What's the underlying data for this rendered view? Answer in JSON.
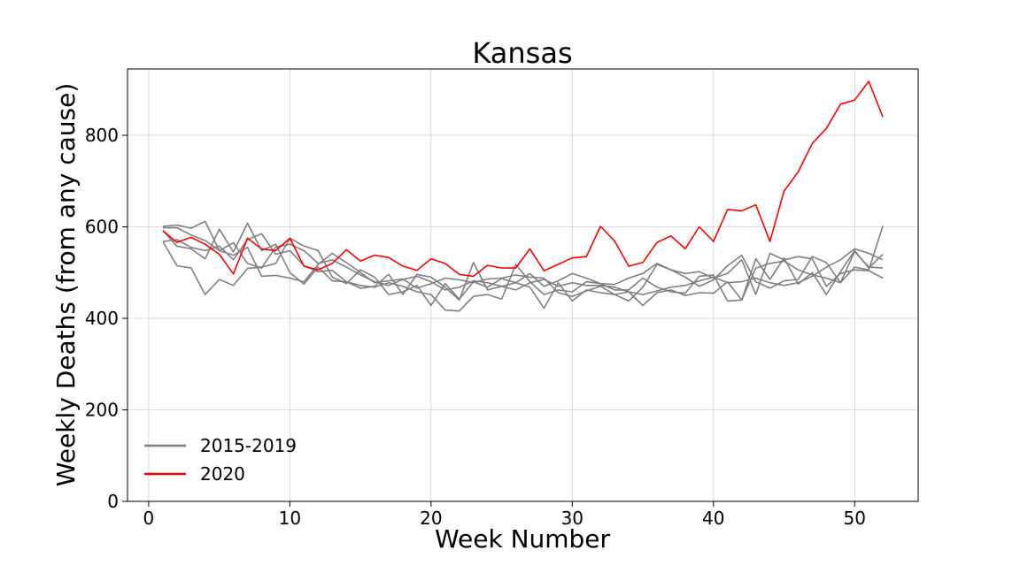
{
  "chart_data": {
    "type": "line",
    "title": "Kansas",
    "xlabel": "Week Number",
    "ylabel": "Weekly Deaths (from any cause)",
    "xlim": [
      -1.5,
      54.5
    ],
    "ylim": [
      0,
      945
    ],
    "xticks": [
      0,
      10,
      20,
      30,
      40,
      50
    ],
    "yticks": [
      0,
      200,
      400,
      600,
      800
    ],
    "grid": true,
    "legend_position": "lower-left",
    "legend": [
      {
        "label": "2015-2019",
        "color": "#808080"
      },
      {
        "label": "2020",
        "color": "#ff0000"
      }
    ],
    "x": [
      1,
      2,
      3,
      4,
      5,
      6,
      7,
      8,
      9,
      10,
      11,
      12,
      13,
      14,
      15,
      16,
      17,
      18,
      19,
      20,
      21,
      22,
      23,
      24,
      25,
      26,
      27,
      28,
      29,
      30,
      31,
      32,
      33,
      34,
      35,
      36,
      37,
      38,
      39,
      40,
      41,
      42,
      43,
      44,
      45,
      46,
      47,
      48,
      49,
      50,
      51,
      52
    ],
    "series": [
      {
        "group": "2015-2019",
        "color": "#808080",
        "values": [
          601,
          604,
          597,
          612,
          548,
          565,
          520,
          510,
          556,
          562,
          548,
          520,
          528,
          512,
          495,
          480,
          472,
          485,
          492,
          480,
          462,
          468,
          482,
          478,
          470,
          462,
          478,
          485,
          470,
          478,
          472,
          472,
          468,
          458,
          452,
          460,
          468,
          472,
          482,
          490,
          478,
          480,
          488,
          478,
          472,
          478,
          492,
          512,
          528,
          552,
          542,
          528
        ]
      },
      {
        "group": "2015-2019",
        "color": "#808080",
        "values": [
          568,
          572,
          555,
          548,
          558,
          528,
          572,
          585,
          540,
          548,
          515,
          502,
          505,
          480,
          472,
          468,
          478,
          470,
          458,
          452,
          418,
          416,
          448,
          452,
          442,
          518,
          480,
          452,
          462,
          458,
          480,
          476,
          462,
          462,
          488,
          468,
          458,
          455,
          492,
          495,
          438,
          440,
          510,
          520,
          525,
          506,
          495,
          488,
          478,
          512,
          506,
          602
        ]
      },
      {
        "group": "2015-2019",
        "color": "#808080",
        "values": [
          568,
          515,
          510,
          452,
          485,
          472,
          509,
          512,
          520,
          575,
          558,
          548,
          490,
          476,
          506,
          490,
          452,
          458,
          472,
          428,
          476,
          442,
          480,
          468,
          487,
          478,
          468,
          422,
          478,
          438,
          462,
          456,
          452,
          458,
          428,
          456,
          462,
          450,
          456,
          455,
          480,
          440,
          530,
          485,
          532,
          475,
          500,
          452,
          502,
          548,
          510,
          540
        ]
      },
      {
        "group": "2015-2019",
        "color": "#808080",
        "values": [
          592,
          558,
          552,
          530,
          595,
          545,
          608,
          548,
          562,
          500,
          475,
          512,
          482,
          480,
          466,
          470,
          496,
          452,
          496,
          490,
          468,
          440,
          522,
          462,
          470,
          478,
          498,
          470,
          482,
          498,
          488,
          476,
          474,
          488,
          498,
          520,
          506,
          490,
          470,
          484,
          515,
          538,
          480,
          466,
          482,
          485,
          535,
          522,
          478,
          546,
          512,
          510
        ]
      },
      {
        "group": "2015-2019",
        "color": "#808080",
        "values": [
          598,
          598,
          582,
          570,
          548,
          538,
          555,
          492,
          494,
          488,
          480,
          518,
          542,
          522,
          500,
          478,
          482,
          486,
          466,
          476,
          488,
          484,
          478,
          486,
          488,
          495,
          490,
          488,
          456,
          448,
          460,
          470,
          452,
          438,
          468,
          518,
          506,
          498,
          502,
          488,
          498,
          528,
          452,
          542,
          528,
          535,
          530,
          470,
          498,
          506,
          504,
          488
        ]
      },
      {
        "group": "2020",
        "color": "#ff0000",
        "values": [
          592,
          566,
          577,
          562,
          540,
          497,
          575,
          552,
          548,
          575,
          514,
          506,
          520,
          550,
          525,
          538,
          533,
          514,
          505,
          530,
          520,
          496,
          492,
          516,
          510,
          510,
          552,
          504,
          518,
          532,
          535,
          601,
          569,
          514,
          522,
          566,
          580,
          552,
          600,
          568,
          638,
          635,
          648,
          568,
          678,
          720,
          782,
          815,
          868,
          877,
          918,
          840
        ]
      }
    ]
  }
}
